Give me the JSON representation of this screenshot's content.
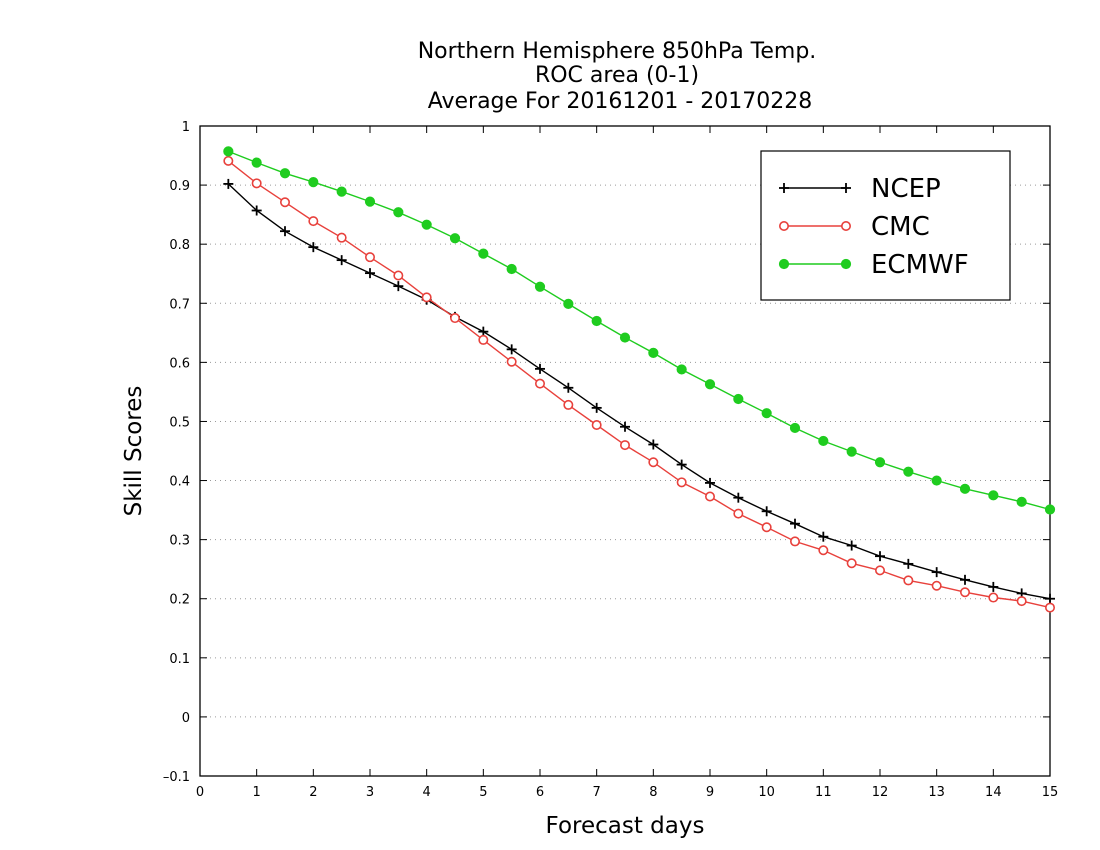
{
  "chart_data": {
    "type": "line",
    "title": [
      "Northern Hemisphere 850hPa Temp.",
      "ROC area (0-1)",
      "Average For 20161201 - 20170228"
    ],
    "xlabel": "Forecast days",
    "ylabel": "Skill Scores",
    "xlim": [
      0,
      15
    ],
    "ylim": [
      -0.1,
      1
    ],
    "xticks": [
      0,
      1,
      2,
      3,
      4,
      5,
      6,
      7,
      8,
      9,
      10,
      11,
      12,
      13,
      14,
      15
    ],
    "yticks": [
      -0.1,
      0,
      0.1,
      0.2,
      0.3,
      0.4,
      0.5,
      0.6,
      0.7,
      0.8,
      0.9,
      1
    ],
    "xtick_labels": [
      "0",
      "1",
      "2",
      "3",
      "4",
      "5",
      "6",
      "7",
      "8",
      "9",
      "10",
      "11",
      "12",
      "13",
      "14",
      "15"
    ],
    "ytick_labels": [
      "–0.1",
      "0",
      "0.1",
      "0.2",
      "0.3",
      "0.4",
      "0.5",
      "0.6",
      "0.7",
      "0.8",
      "0.9",
      "1"
    ],
    "grid": "horizontal-dotted",
    "legend_position": "top-right",
    "x": [
      0.5,
      1,
      1.5,
      2,
      2.5,
      3,
      3.5,
      4,
      4.5,
      5,
      5.5,
      6,
      6.5,
      7,
      7.5,
      8,
      8.5,
      9,
      9.5,
      10,
      10.5,
      11,
      11.5,
      12,
      12.5,
      13,
      13.5,
      14,
      14.5,
      15
    ],
    "series": [
      {
        "name": "NCEP",
        "color": "#000000",
        "marker": "plus",
        "values": [
          0.902,
          0.857,
          0.822,
          0.795,
          0.773,
          0.751,
          0.729,
          0.706,
          0.677,
          0.652,
          0.622,
          0.589,
          0.557,
          0.523,
          0.491,
          0.461,
          0.427,
          0.396,
          0.371,
          0.348,
          0.327,
          0.305,
          0.29,
          0.272,
          0.259,
          0.245,
          0.232,
          0.22,
          0.209,
          0.2
        ]
      },
      {
        "name": "CMC",
        "color": "#e8413c",
        "marker": "open-circle",
        "values": [
          0.941,
          0.903,
          0.871,
          0.839,
          0.811,
          0.778,
          0.747,
          0.71,
          0.675,
          0.638,
          0.601,
          0.564,
          0.528,
          0.494,
          0.46,
          0.431,
          0.397,
          0.373,
          0.344,
          0.321,
          0.297,
          0.282,
          0.26,
          0.248,
          0.231,
          0.222,
          0.211,
          0.202,
          0.196,
          0.185
        ]
      },
      {
        "name": "ECMWF",
        "color": "#1fcc1f",
        "marker": "filled-circle",
        "values": [
          0.957,
          0.938,
          0.92,
          0.905,
          0.889,
          0.872,
          0.854,
          0.833,
          0.81,
          0.784,
          0.758,
          0.728,
          0.699,
          0.67,
          0.642,
          0.616,
          0.588,
          0.563,
          0.538,
          0.514,
          0.489,
          0.467,
          0.449,
          0.431,
          0.415,
          0.4,
          0.386,
          0.375,
          0.364,
          0.351
        ]
      }
    ]
  }
}
